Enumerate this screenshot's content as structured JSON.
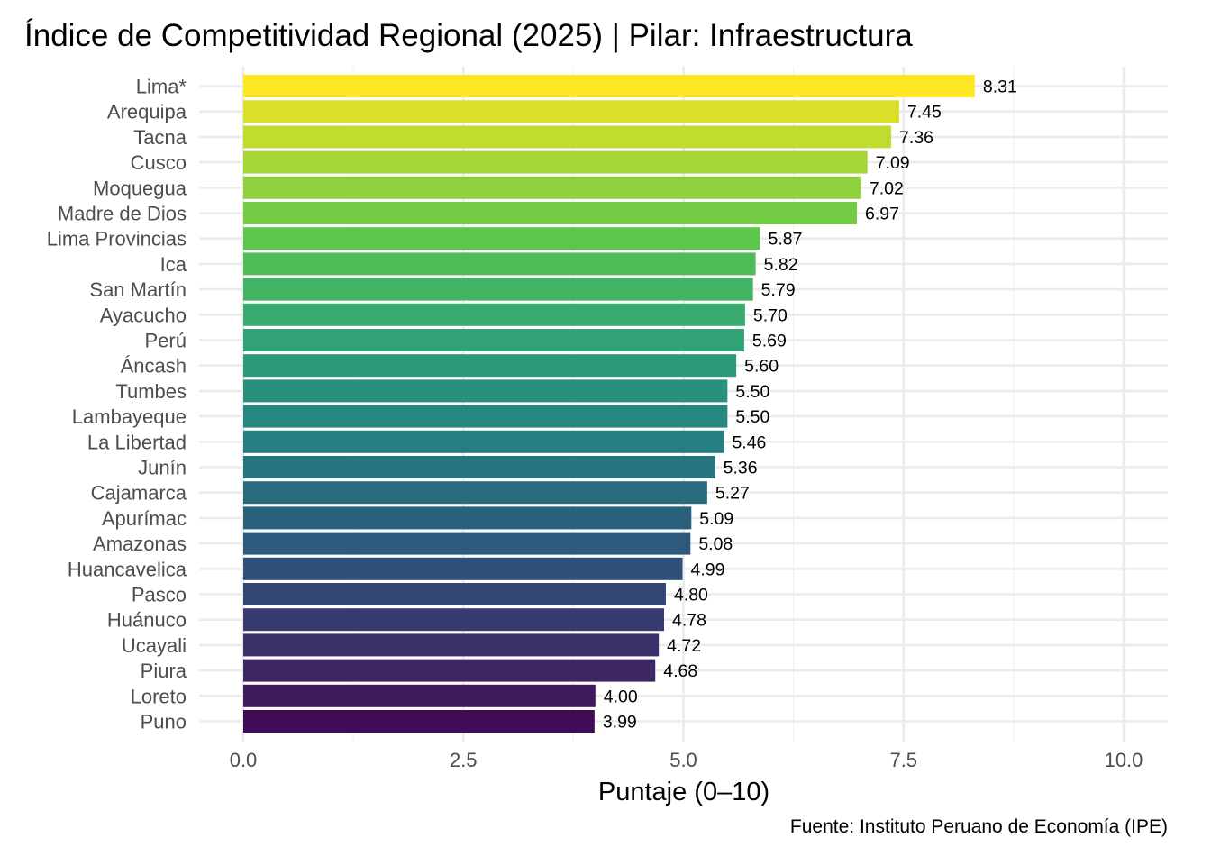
{
  "chart_data": {
    "type": "bar",
    "orientation": "horizontal",
    "title": "Índice de Competitividad Regional (2025) | Pilar: Infraestructura",
    "xlabel": "Puntaje (0–10)",
    "ylabel": "",
    "caption": "Fuente: Instituto Peruano de Economía (IPE)",
    "xlim": [
      0,
      10
    ],
    "xticks": [
      0.0,
      2.5,
      5.0,
      7.5,
      10.0
    ],
    "xtick_labels": [
      "0.0",
      "2.5",
      "5.0",
      "7.5",
      "10.0"
    ],
    "grid": true,
    "legend": "none",
    "colormap": "viridis",
    "categories": [
      "Lima*",
      "Arequipa",
      "Tacna",
      "Cusco",
      "Moquegua",
      "Madre de Dios",
      "Lima Provincias",
      "Ica",
      "San Martín",
      "Ayacucho",
      "Perú",
      "Áncash",
      "Tumbes",
      "Lambayeque",
      "La Libertad",
      "Junín",
      "Cajamarca",
      "Apurímac",
      "Amazonas",
      "Huancavelica",
      "Pasco",
      "Huánuco",
      "Ucayali",
      "Piura",
      "Loreto",
      "Puno"
    ],
    "values": [
      8.31,
      7.45,
      7.36,
      7.09,
      7.02,
      6.97,
      5.87,
      5.82,
      5.79,
      5.7,
      5.69,
      5.6,
      5.5,
      5.5,
      5.46,
      5.36,
      5.27,
      5.09,
      5.08,
      4.99,
      4.8,
      4.78,
      4.72,
      4.68,
      4.0,
      3.99
    ],
    "value_labels": [
      "8.31",
      "7.45",
      "7.36",
      "7.09",
      "7.02",
      "6.97",
      "5.87",
      "5.82",
      "5.79",
      "5.70",
      "5.69",
      "5.60",
      "5.50",
      "5.50",
      "5.46",
      "5.36",
      "5.27",
      "5.09",
      "5.08",
      "4.99",
      "4.80",
      "4.78",
      "4.72",
      "4.68",
      "4.00",
      "3.99"
    ],
    "colors": [
      "#FDE725",
      "#DDE02A",
      "#C2DB2F",
      "#A5D635",
      "#8DD13C",
      "#75CB43",
      "#5EC54C",
      "#4CBD57",
      "#41B464",
      "#39AB6E",
      "#31A276",
      "#2C997B",
      "#28907E",
      "#26877F",
      "#257E80",
      "#267480",
      "#276B7F",
      "#2A627E",
      "#2C597C",
      "#2F507A",
      "#324676",
      "#363C71",
      "#3A316B",
      "#3D2664",
      "#3F1A5D",
      "#400C55"
    ]
  }
}
